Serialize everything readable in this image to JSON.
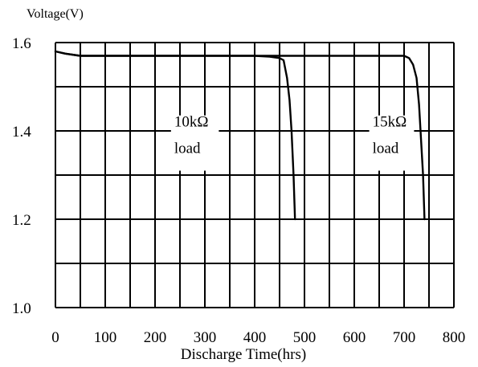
{
  "chart_data": {
    "type": "line",
    "ylabel": "Voltage(V)",
    "xlabel": "Discharge Time(hrs)",
    "xlim": [
      0,
      800
    ],
    "ylim": [
      1.0,
      1.6
    ],
    "x_ticks": [
      0,
      100,
      200,
      300,
      400,
      500,
      600,
      700,
      800
    ],
    "x_tick_labels": [
      "0",
      "100",
      "200",
      "300",
      "400",
      "500",
      "600",
      "700",
      "800"
    ],
    "y_ticks": [
      1.0,
      1.2,
      1.4,
      1.6
    ],
    "y_tick_labels": [
      "1.0",
      "1.2",
      "1.4",
      "1.6"
    ],
    "x_grid_step": 50,
    "y_grid_step": 0.1,
    "grid": true,
    "line_color": "#000000",
    "series": [
      {
        "points": [
          [
            0,
            1.58
          ],
          [
            20,
            1.575
          ],
          [
            50,
            1.57
          ],
          [
            100,
            1.57
          ],
          [
            200,
            1.57
          ],
          [
            300,
            1.57
          ],
          [
            400,
            1.57
          ],
          [
            430,
            1.568
          ],
          [
            450,
            1.565
          ],
          [
            458,
            1.56
          ],
          [
            465,
            1.52
          ],
          [
            470,
            1.47
          ],
          [
            474,
            1.4
          ],
          [
            478,
            1.3
          ],
          [
            481,
            1.2
          ]
        ]
      },
      {
        "points": [
          [
            0,
            1.58
          ],
          [
            20,
            1.575
          ],
          [
            50,
            1.57
          ],
          [
            100,
            1.57
          ],
          [
            200,
            1.57
          ],
          [
            300,
            1.57
          ],
          [
            400,
            1.57
          ],
          [
            500,
            1.57
          ],
          [
            600,
            1.57
          ],
          [
            700,
            1.57
          ],
          [
            710,
            1.565
          ],
          [
            718,
            1.55
          ],
          [
            725,
            1.52
          ],
          [
            730,
            1.46
          ],
          [
            734,
            1.38
          ],
          [
            738,
            1.3
          ],
          [
            741,
            1.2
          ]
        ]
      }
    ],
    "annotations": [
      {
        "lines": [
          "10kΩ",
          "load"
        ],
        "x": 275,
        "y": 1.385,
        "box_x": [
          232,
          328
        ],
        "box_y": [
          1.31,
          1.435
        ]
      },
      {
        "lines": [
          "15kΩ",
          "load"
        ],
        "x": 675,
        "y": 1.385,
        "box_x": [
          630,
          720
        ],
        "box_y": [
          1.31,
          1.435
        ]
      }
    ]
  }
}
